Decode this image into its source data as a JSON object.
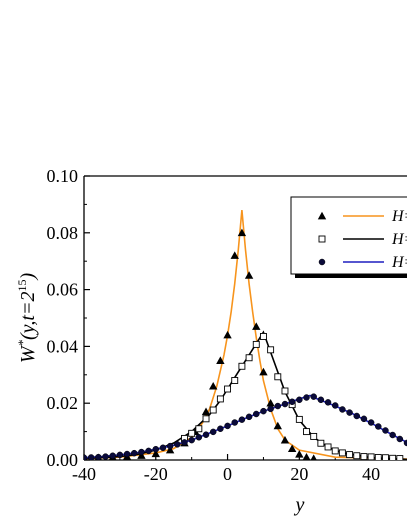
{
  "chart_data": {
    "type": "line",
    "title": "",
    "xlabel": "y",
    "ylabel": "W*(y,t=2^15)",
    "ylabel_parts": {
      "main": "W",
      "star": "*",
      "args": "(y,t=2",
      "exp": "15",
      "close": ")"
    },
    "xlim": [
      -40,
      50
    ],
    "ylim": [
      0,
      0.1
    ],
    "x_ticks": [
      -40,
      -20,
      0,
      20,
      40
    ],
    "x_tick_labels": [
      "-40",
      "-20",
      "0",
      "20",
      "40"
    ],
    "y_ticks": [
      0,
      0.02,
      0.04,
      0.06,
      0.08,
      0.1
    ],
    "y_tick_labels": [
      "0.00",
      "0.02",
      "0.04",
      "0.06",
      "0.08",
      "0.10"
    ],
    "legend_position": "top-right",
    "grid": false,
    "series": [
      {
        "legend_label": "H=",
        "color": "#f7941d",
        "marker": "triangle-filled",
        "peak_x": 4,
        "line": [
          [
            -40,
            0.0005
          ],
          [
            -30,
            0.001
          ],
          [
            -20,
            0.0025
          ],
          [
            -15,
            0.004
          ],
          [
            -10,
            0.008
          ],
          [
            -7,
            0.013
          ],
          [
            -5,
            0.018
          ],
          [
            -3,
            0.026
          ],
          [
            -1,
            0.037
          ],
          [
            0,
            0.044
          ],
          [
            1,
            0.052
          ],
          [
            2,
            0.062
          ],
          [
            3,
            0.074
          ],
          [
            4,
            0.088
          ],
          [
            5,
            0.074
          ],
          [
            6,
            0.062
          ],
          [
            7,
            0.052
          ],
          [
            8,
            0.043
          ],
          [
            9,
            0.035
          ],
          [
            10,
            0.028
          ],
          [
            12,
            0.018
          ],
          [
            14,
            0.011
          ],
          [
            16,
            0.007
          ],
          [
            20,
            0.0035
          ],
          [
            30,
            0.001
          ],
          [
            50,
            0.0003
          ]
        ],
        "points": [
          [
            -40,
            0.0008
          ],
          [
            -36,
            0.0008
          ],
          [
            -32,
            0.001
          ],
          [
            -28,
            0.0012
          ],
          [
            -24,
            0.0016
          ],
          [
            -20,
            0.0022
          ],
          [
            -16,
            0.0035
          ],
          [
            -12,
            0.006
          ],
          [
            -9,
            0.01
          ],
          [
            -6,
            0.017
          ],
          [
            -4,
            0.026
          ],
          [
            -2,
            0.035
          ],
          [
            0,
            0.044
          ],
          [
            2,
            0.072
          ],
          [
            4,
            0.08
          ],
          [
            6,
            0.065
          ],
          [
            8,
            0.047
          ],
          [
            10,
            0.031
          ],
          [
            12,
            0.02
          ],
          [
            14,
            0.012
          ],
          [
            16,
            0.007
          ],
          [
            18,
            0.004
          ],
          [
            20,
            0.002
          ],
          [
            22,
            0.001
          ],
          [
            24,
            0.0005
          ]
        ]
      },
      {
        "legend_label": "H=",
        "color": "#000000",
        "marker": "square-open",
        "peak_x": 10,
        "line": [
          [
            -40,
            0.0005
          ],
          [
            -30,
            0.0012
          ],
          [
            -25,
            0.002
          ],
          [
            -20,
            0.0035
          ],
          [
            -15,
            0.006
          ],
          [
            -10,
            0.01
          ],
          [
            -5,
            0.016
          ],
          [
            -2,
            0.021
          ],
          [
            0,
            0.025
          ],
          [
            2,
            0.029
          ],
          [
            4,
            0.033
          ],
          [
            6,
            0.037
          ],
          [
            8,
            0.041
          ],
          [
            10,
            0.045
          ],
          [
            12,
            0.038
          ],
          [
            14,
            0.031
          ],
          [
            16,
            0.024
          ],
          [
            18,
            0.019
          ],
          [
            20,
            0.014
          ],
          [
            24,
            0.008
          ],
          [
            28,
            0.0045
          ],
          [
            32,
            0.0025
          ],
          [
            40,
            0.0008
          ],
          [
            50,
            0.0002
          ]
        ],
        "points": [
          [
            -12,
            0.0076
          ],
          [
            -10,
            0.0094
          ],
          [
            -8,
            0.011
          ],
          [
            -6,
            0.0145
          ],
          [
            -4,
            0.0176
          ],
          [
            -2,
            0.0215
          ],
          [
            0,
            0.025
          ],
          [
            2,
            0.028
          ],
          [
            4,
            0.033
          ],
          [
            6,
            0.036
          ],
          [
            8,
            0.0407
          ],
          [
            10,
            0.0435
          ],
          [
            12,
            0.0388
          ],
          [
            14,
            0.0293
          ],
          [
            16,
            0.0243
          ],
          [
            18,
            0.0195
          ],
          [
            20,
            0.0143
          ],
          [
            22,
            0.01
          ],
          [
            24,
            0.0083
          ],
          [
            26,
            0.0059
          ],
          [
            28,
            0.0046
          ],
          [
            30,
            0.0032
          ],
          [
            32,
            0.0025
          ],
          [
            34,
            0.0019
          ],
          [
            36,
            0.0015
          ],
          [
            38,
            0.0012
          ],
          [
            40,
            0.0011
          ],
          [
            42,
            0.0009
          ],
          [
            44,
            0.0008
          ],
          [
            46,
            0.0006
          ],
          [
            48,
            0.0005
          ]
        ]
      },
      {
        "legend_label": "H=",
        "color": "#1f1fbf",
        "marker": "circle-filled",
        "peak_x": 23,
        "line": [
          [
            -40,
            0.0008
          ],
          [
            -35,
            0.0012
          ],
          [
            -30,
            0.0018
          ],
          [
            -25,
            0.0026
          ],
          [
            -20,
            0.0038
          ],
          [
            -15,
            0.0052
          ],
          [
            -10,
            0.007
          ],
          [
            -5,
            0.0095
          ],
          [
            0,
            0.012
          ],
          [
            5,
            0.0147
          ],
          [
            10,
            0.0172
          ],
          [
            15,
            0.0193
          ],
          [
            20,
            0.0215
          ],
          [
            23,
            0.0227
          ],
          [
            25,
            0.0215
          ],
          [
            30,
            0.019
          ],
          [
            35,
            0.0162
          ],
          [
            40,
            0.013
          ],
          [
            45,
            0.0095
          ],
          [
            50,
            0.0062
          ]
        ],
        "points": [
          [
            -40,
            0.0008
          ],
          [
            -38,
            0.0009
          ],
          [
            -36,
            0.001
          ],
          [
            -34,
            0.0012
          ],
          [
            -32,
            0.0015
          ],
          [
            -30,
            0.0018
          ],
          [
            -28,
            0.0021
          ],
          [
            -26,
            0.0024
          ],
          [
            -24,
            0.0028
          ],
          [
            -22,
            0.0032
          ],
          [
            -20,
            0.0038
          ],
          [
            -18,
            0.0043
          ],
          [
            -16,
            0.0049
          ],
          [
            -14,
            0.0055
          ],
          [
            -12,
            0.0062
          ],
          [
            -10,
            0.007
          ],
          [
            -8,
            0.008
          ],
          [
            -6,
            0.0089
          ],
          [
            -4,
            0.0099
          ],
          [
            -2,
            0.011
          ],
          [
            0,
            0.012
          ],
          [
            2,
            0.0132
          ],
          [
            4,
            0.0142
          ],
          [
            6,
            0.0152
          ],
          [
            8,
            0.0162
          ],
          [
            10,
            0.0172
          ],
          [
            12,
            0.018
          ],
          [
            14,
            0.019
          ],
          [
            16,
            0.0197
          ],
          [
            18,
            0.0205
          ],
          [
            20,
            0.0212
          ],
          [
            22,
            0.022
          ],
          [
            24,
            0.0223
          ],
          [
            26,
            0.0212
          ],
          [
            28,
            0.0203
          ],
          [
            30,
            0.0192
          ],
          [
            32,
            0.0178
          ],
          [
            34,
            0.0167
          ],
          [
            36,
            0.0155
          ],
          [
            38,
            0.0145
          ],
          [
            40,
            0.0132
          ],
          [
            42,
            0.0118
          ],
          [
            44,
            0.0104
          ],
          [
            46,
            0.0088
          ],
          [
            48,
            0.0074
          ],
          [
            50,
            0.006
          ]
        ]
      }
    ]
  }
}
